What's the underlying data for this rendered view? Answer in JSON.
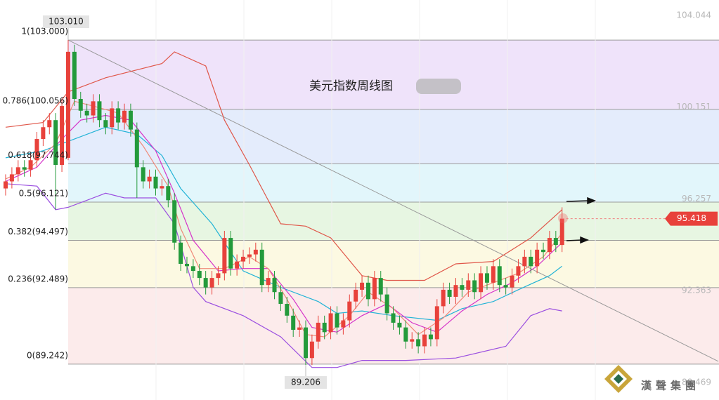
{
  "chart_data": {
    "type": "candlestick",
    "title": "美元指数周线图",
    "watermark": "漢聲集團",
    "ylim": [
      87.72,
      104.7
    ],
    "yticks": [
      104.044,
      100.151,
      96.257,
      92.363,
      88.469
    ],
    "xlim": [
      -0.9,
      114.1
    ],
    "up_color": "#e8413b",
    "down_color": "#239a3b",
    "open": [
      96.7,
      97.0,
      97.3,
      97.6,
      97.5,
      97.9,
      98.8,
      99.3,
      99.6,
      97.7,
      98.0,
      102.5,
      100.5,
      100.0,
      99.8,
      100.4,
      99.6,
      99.3,
      100.1,
      99.5,
      100.0,
      99.2,
      97.6,
      97.0,
      97.2,
      96.7,
      96.8,
      96.2,
      94.4,
      93.5,
      93.4,
      93.2,
      92.9,
      92.5,
      92.9,
      93.1,
      94.6,
      93.3,
      93.6,
      93.8,
      93.9,
      94.1,
      92.6,
      92.9,
      92.3,
      91.8,
      91.3,
      90.7,
      90.8,
      89.5,
      90.2,
      91.0,
      90.6,
      91.4,
      90.8,
      91.1,
      91.9,
      92.4,
      92.7,
      92.0,
      92.9,
      92.2,
      91.4,
      91.0,
      90.8,
      90.2,
      90.3,
      90.0,
      90.5,
      90.3,
      91.7,
      92.4,
      92.1,
      92.6,
      92.4,
      92.8,
      92.3,
      93.1,
      92.7,
      93.4,
      92.6,
      92.5,
      93.0,
      93.4,
      93.8,
      93.4,
      94.1,
      94.0,
      94.6,
      94.3
    ],
    "high": [
      97.3,
      97.6,
      97.9,
      97.9,
      98.2,
      99.1,
      99.6,
      99.9,
      99.9,
      100.5,
      103.01,
      102.8,
      100.8,
      100.3,
      100.7,
      100.7,
      99.9,
      100.4,
      100.4,
      100.3,
      100.3,
      99.5,
      97.9,
      97.5,
      97.5,
      97.1,
      97.1,
      96.5,
      94.7,
      93.8,
      93.7,
      93.5,
      93.2,
      93.2,
      93.4,
      94.9,
      94.9,
      93.9,
      94.1,
      94.2,
      94.4,
      94.4,
      93.2,
      93.2,
      92.6,
      92.1,
      91.6,
      91.1,
      91.1,
      90.5,
      91.3,
      91.3,
      91.7,
      91.7,
      91.4,
      92.2,
      92.7,
      93.0,
      93.0,
      93.2,
      93.2,
      92.5,
      91.7,
      91.3,
      91.1,
      90.6,
      90.6,
      90.8,
      90.8,
      92.0,
      92.7,
      92.7,
      92.9,
      92.9,
      93.1,
      93.1,
      93.4,
      93.4,
      93.7,
      93.7,
      92.9,
      93.3,
      93.7,
      94.1,
      94.1,
      94.4,
      94.4,
      94.9,
      94.9,
      95.9
    ],
    "low": [
      96.4,
      96.7,
      97.0,
      97.2,
      97.2,
      97.6,
      98.5,
      99.0,
      95.8,
      97.4,
      97.9,
      100.2,
      99.7,
      99.5,
      99.5,
      99.3,
      99.0,
      99.0,
      99.2,
      99.2,
      98.9,
      96.3,
      96.7,
      96.7,
      96.4,
      96.4,
      95.9,
      94.1,
      93.2,
      93.1,
      92.9,
      92.6,
      92.2,
      92.2,
      92.6,
      92.8,
      93.0,
      93.0,
      93.3,
      93.5,
      93.6,
      92.3,
      92.3,
      92.0,
      91.5,
      91.0,
      90.4,
      90.4,
      89.206,
      89.2,
      89.9,
      90.3,
      90.3,
      90.5,
      90.5,
      90.8,
      91.6,
      92.1,
      91.7,
      91.7,
      91.9,
      91.1,
      90.7,
      90.5,
      89.9,
      89.9,
      89.7,
      89.7,
      90.0,
      90.0,
      91.4,
      91.8,
      91.8,
      92.1,
      92.1,
      92.0,
      92.0,
      92.4,
      92.4,
      92.3,
      92.2,
      92.2,
      92.7,
      93.1,
      93.1,
      93.1,
      93.7,
      93.7,
      94.0,
      94.0
    ],
    "close": [
      97.0,
      97.3,
      97.6,
      97.5,
      97.9,
      98.8,
      99.3,
      99.6,
      97.7,
      100.2,
      102.5,
      100.5,
      100.0,
      99.8,
      100.4,
      99.6,
      99.3,
      100.1,
      99.5,
      100.0,
      99.2,
      97.6,
      97.0,
      97.2,
      96.7,
      96.8,
      96.2,
      94.4,
      93.5,
      93.4,
      93.2,
      92.9,
      92.5,
      92.9,
      93.1,
      94.6,
      93.3,
      93.6,
      93.8,
      93.9,
      94.1,
      92.6,
      92.9,
      92.3,
      91.8,
      91.3,
      90.7,
      90.8,
      89.5,
      90.2,
      91.0,
      90.6,
      91.4,
      90.8,
      91.1,
      91.9,
      92.4,
      92.7,
      92.0,
      92.9,
      92.2,
      91.4,
      91.0,
      90.8,
      90.2,
      90.3,
      90.0,
      90.5,
      90.3,
      91.7,
      92.4,
      92.1,
      92.6,
      92.4,
      92.8,
      92.3,
      93.1,
      92.7,
      93.4,
      92.6,
      92.5,
      93.0,
      93.4,
      93.8,
      93.4,
      94.1,
      94.0,
      94.6,
      94.3,
      95.418
    ],
    "overlays": [
      {
        "color": "#e0574a",
        "x": [
          0,
          6,
          10,
          16,
          25,
          27,
          32,
          35,
          39,
          44,
          48,
          52,
          57,
          61,
          67,
          72,
          78,
          84,
          89
        ],
        "values": [
          99.3,
          99.5,
          100.8,
          101.4,
          102.0,
          102.5,
          101.9,
          99.6,
          97.7,
          95.2,
          95.1,
          94.6,
          93.0,
          92.8,
          92.8,
          93.5,
          93.6,
          94.6,
          95.8
        ]
      },
      {
        "color": "#9b4fe0",
        "x": [
          0,
          5,
          8,
          10,
          16,
          19,
          24,
          27,
          30,
          32,
          38,
          44,
          49,
          53,
          57,
          64,
          72,
          80,
          84,
          87,
          89
        ],
        "values": [
          96.9,
          96.8,
          95.8,
          95.9,
          96.5,
          96.3,
          96.3,
          95.2,
          92.5,
          91.9,
          91.3,
          90.4,
          89.1,
          89.1,
          89.4,
          89.4,
          89.5,
          90.0,
          91.3,
          91.6,
          91.5
        ]
      },
      {
        "color": "#22b3d6",
        "x": [
          0,
          6,
          10,
          16,
          21,
          25,
          28,
          33,
          38,
          44,
          50,
          53,
          57,
          62,
          69,
          73,
          78,
          82,
          87,
          89
        ],
        "values": [
          98.0,
          98.3,
          98.7,
          99.3,
          99.0,
          98.1,
          96.7,
          95.2,
          93.2,
          92.5,
          91.9,
          91.4,
          91.5,
          91.3,
          91.1,
          91.6,
          91.9,
          92.4,
          93.0,
          93.4
        ]
      },
      {
        "color": "#d633c9",
        "x": [
          0,
          5,
          9,
          12,
          16,
          20,
          24,
          27,
          30,
          34,
          38,
          42,
          46,
          49,
          53,
          57,
          61,
          65,
          69,
          73,
          77,
          81,
          85,
          89
        ],
        "values": [
          97.0,
          97.6,
          98.8,
          99.6,
          99.8,
          99.6,
          98.3,
          96.5,
          94.5,
          93.2,
          93.3,
          93.3,
          92.0,
          90.8,
          90.6,
          91.3,
          91.8,
          91.0,
          90.6,
          91.5,
          92.2,
          92.7,
          93.4,
          94.4
        ]
      },
      {
        "color": "#f08a7a",
        "x": [
          0,
          4,
          8,
          11,
          14,
          18,
          22,
          26,
          28,
          31,
          35,
          39,
          42,
          45,
          48,
          51,
          55,
          58,
          62,
          66,
          70,
          74,
          78,
          82,
          86,
          89
        ],
        "values": [
          97.1,
          97.6,
          98.6,
          100.4,
          100.2,
          99.9,
          98.5,
          96.8,
          95.0,
          93.3,
          93.3,
          93.8,
          93.3,
          92.0,
          90.5,
          90.4,
          91.3,
          92.3,
          91.6,
          90.5,
          91.2,
          92.3,
          92.7,
          93.1,
          93.8,
          94.8
        ]
      }
    ],
    "trendline": {
      "color": "#999999",
      "x": [
        10,
        114
      ],
      "values": [
        103.0,
        89.36
      ]
    },
    "fib_levels": [
      {
        "value": 103.0,
        "label": "1(103.000)"
      },
      {
        "value": 100.056,
        "label": "0.786(100.056)"
      },
      {
        "value": 97.744,
        "label": "0.618(97.744)"
      },
      {
        "value": 96.121,
        "label": "0.5(96.121)"
      },
      {
        "value": 94.497,
        "label": "0.382(94.497)"
      },
      {
        "value": 92.489,
        "label": "0.236(92.489)"
      },
      {
        "value": 89.242,
        "label": "0(89.242)"
      }
    ],
    "band_colors": [
      "#efe3fa",
      "#e4ecfc",
      "#e2f6fb",
      "#e7f6e2",
      "#fcf9e2",
      "#fcebeb"
    ],
    "high_marker": {
      "value": 103.01,
      "label": "103.010"
    },
    "low_marker": 89.206
  }
}
